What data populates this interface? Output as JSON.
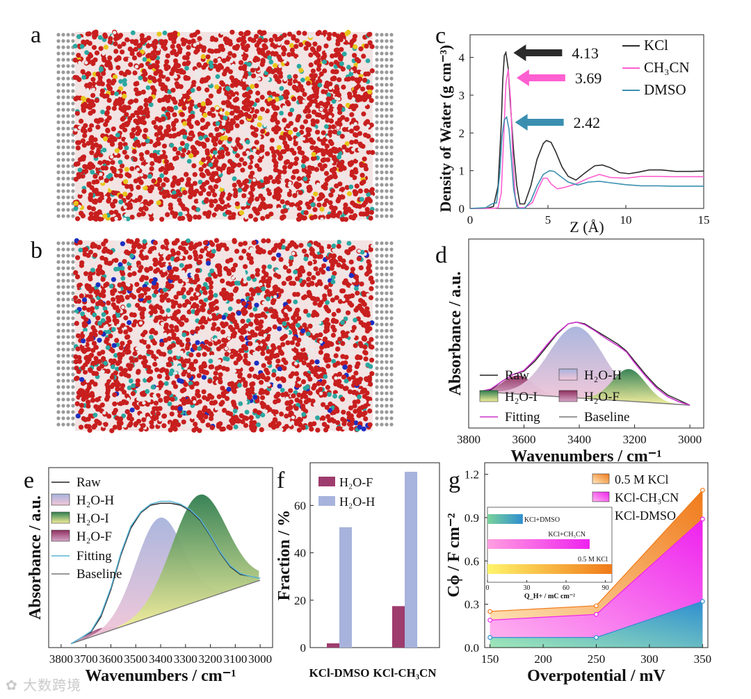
{
  "panels": {
    "a": {
      "label": "a"
    },
    "b": {
      "label": "b"
    }
  },
  "colors": {
    "kcl": "#2b2b2b",
    "ch3cn": "#ff5fd0",
    "dmso": "#3a8fb0",
    "h2o_f": "#9e3c6e",
    "h2o_h": "#a7b3dc",
    "h2o_i": "#3d8a55",
    "fitting": "#cc33cc",
    "baseline": "#777777",
    "sim_o": "#c81e1e",
    "sim_h": "#eaeaea",
    "sim_c": "#2aa7a0",
    "sim_k": "#e8c51a",
    "sim_n": "#1c2fc0",
    "sim_wall": "#9a9a9a",
    "g_kcl": "#f07a1a",
    "g_ch3cn": "#ee22ee",
    "g_dmso": "#2f8fd0"
  },
  "chart_data": [
    {
      "panel": "c",
      "type": "line",
      "xlabel": "Z (Å)",
      "ylabel": "Density of Water (g cm⁻³)",
      "xlim": [
        0,
        15
      ],
      "ylim": [
        0,
        4.6
      ],
      "xticks": [
        0,
        5,
        10,
        15
      ],
      "yticks": [
        0,
        1,
        2,
        3,
        4
      ],
      "series": [
        {
          "name": "KCl",
          "x": [
            0,
            1.0,
            1.5,
            1.8,
            2.0,
            2.1,
            2.2,
            2.3,
            2.45,
            2.6,
            2.8,
            3.0,
            3.2,
            3.5,
            3.9,
            4.3,
            4.7,
            4.9,
            5.2,
            5.5,
            5.9,
            6.3,
            6.8,
            7.4,
            8.0,
            8.5,
            9.0,
            9.6,
            10.2,
            10.8,
            11.5,
            12.3,
            13.2,
            14.2,
            15
          ],
          "y": [
            0,
            0,
            0.05,
            0.6,
            2.2,
            3.4,
            4.05,
            4.13,
            3.7,
            2.7,
            1.5,
            0.6,
            0.12,
            0.12,
            0.6,
            1.3,
            1.72,
            1.8,
            1.75,
            1.5,
            1.1,
            0.85,
            0.75,
            0.95,
            1.13,
            1.15,
            1.08,
            0.95,
            0.92,
            0.96,
            1.02,
            1.02,
            0.98,
            0.98,
            0.99
          ]
        },
        {
          "name": "CH₃CN",
          "x": [
            0,
            1.5,
            1.8,
            2.0,
            2.15,
            2.3,
            2.45,
            2.6,
            2.75,
            2.9,
            3.1,
            3.5,
            4.0,
            4.4,
            4.7,
            4.95,
            5.2,
            5.6,
            6.0,
            6.8,
            7.6,
            8.3,
            9.0,
            10.0,
            11.0,
            12.0,
            13.0,
            14.0,
            15
          ],
          "y": [
            0,
            0,
            0.02,
            0.4,
            1.8,
            3.3,
            3.69,
            2.9,
            1.3,
            0.3,
            0.02,
            0.02,
            0.15,
            0.55,
            0.8,
            0.8,
            0.65,
            0.52,
            0.55,
            0.65,
            0.8,
            0.9,
            0.82,
            0.8,
            0.85,
            0.85,
            0.84,
            0.84,
            0.84
          ]
        },
        {
          "name": "DMSO",
          "x": [
            0,
            1.0,
            1.4,
            1.7,
            1.9,
            2.05,
            2.2,
            2.35,
            2.5,
            2.65,
            2.8,
            3.0,
            3.2,
            3.5,
            3.9,
            4.3,
            4.7,
            5.1,
            5.4,
            5.8,
            6.3,
            6.9,
            7.6,
            8.3,
            9.0,
            10.0,
            11.0,
            12.0,
            13.0,
            14.0,
            15
          ],
          "y": [
            0,
            0.02,
            0.12,
            0.15,
            0.9,
            1.9,
            2.35,
            2.42,
            2.1,
            1.3,
            0.5,
            0.05,
            0.0,
            0.0,
            0.2,
            0.6,
            0.9,
            1.0,
            0.98,
            0.85,
            0.7,
            0.62,
            0.7,
            0.72,
            0.68,
            0.63,
            0.6,
            0.6,
            0.59,
            0.59,
            0.59
          ]
        }
      ],
      "annotations": [
        {
          "text": "4.13",
          "x": 2.25,
          "y": 4.13,
          "series": "KCl"
        },
        {
          "text": "3.69",
          "x": 2.45,
          "y": 3.69,
          "series": "CH₃CN"
        },
        {
          "text": "2.42",
          "x": 2.35,
          "y": 2.42,
          "series": "DMSO"
        }
      ],
      "legend": [
        "KCl",
        "CH₃CN",
        "DMSO"
      ]
    },
    {
      "panel": "d",
      "type": "area",
      "xlabel": "Wavenumbers / cm⁻¹",
      "ylabel": "Absorbance / a.u.",
      "xlim": [
        3800,
        2950
      ],
      "xticks": [
        3800,
        3600,
        3400,
        3200,
        3000
      ],
      "ylim": [
        0,
        1
      ],
      "baseline": {
        "x": [
          3760,
          3000
        ],
        "y": [
          0.1,
          0.02
        ]
      },
      "series": [
        {
          "name": "Raw",
          "x": [
            3760,
            3720,
            3680,
            3640,
            3600,
            3560,
            3520,
            3480,
            3440,
            3410,
            3380,
            3340,
            3300,
            3260,
            3230,
            3200,
            3160,
            3120,
            3080,
            3040,
            3000
          ],
          "y": [
            0.1,
            0.11,
            0.16,
            0.2,
            0.22,
            0.28,
            0.36,
            0.44,
            0.5,
            0.51,
            0.5,
            0.46,
            0.42,
            0.38,
            0.34,
            0.28,
            0.2,
            0.13,
            0.08,
            0.05,
            0.02
          ]
        },
        {
          "name": "Fitting",
          "x": [
            3760,
            3720,
            3680,
            3640,
            3600,
            3560,
            3520,
            3480,
            3440,
            3410,
            3380,
            3340,
            3300,
            3260,
            3230,
            3200,
            3160,
            3120,
            3080,
            3040,
            3000
          ],
          "y": [
            0.1,
            0.115,
            0.16,
            0.2,
            0.225,
            0.29,
            0.37,
            0.445,
            0.5,
            0.51,
            0.495,
            0.455,
            0.41,
            0.37,
            0.335,
            0.27,
            0.19,
            0.12,
            0.07,
            0.04,
            0.02
          ]
        },
        {
          "name": "H₂O-F",
          "center": 3620,
          "height": 0.11,
          "width": 55
        },
        {
          "name": "H₂O-H",
          "center": 3410,
          "height": 0.42,
          "width": 100
        },
        {
          "name": "H₂O-I",
          "center": 3220,
          "height": 0.19,
          "width": 60
        }
      ],
      "legend": [
        "Raw",
        "H₂O-I",
        "Fitting",
        "H₂O-H",
        "H₂O-F",
        "Baseline"
      ]
    },
    {
      "panel": "e",
      "type": "area",
      "xlabel": "Wavenumbers / cm⁻¹",
      "ylabel": "Absorbance / a.u.",
      "xlim": [
        3850,
        2950
      ],
      "xticks": [
        3800,
        3700,
        3600,
        3500,
        3400,
        3300,
        3200,
        3100,
        3000
      ],
      "ylim": [
        0,
        1
      ],
      "baseline": {
        "x": [
          3760,
          3000
        ],
        "y": [
          0.02,
          0.35
        ]
      },
      "series": [
        {
          "name": "Raw",
          "x": [
            3760,
            3720,
            3680,
            3640,
            3600,
            3560,
            3520,
            3480,
            3440,
            3400,
            3360,
            3320,
            3280,
            3240,
            3200,
            3160,
            3120,
            3080,
            3040,
            3000
          ],
          "y": [
            0.02,
            0.05,
            0.08,
            0.16,
            0.3,
            0.48,
            0.62,
            0.7,
            0.74,
            0.75,
            0.75,
            0.74,
            0.71,
            0.66,
            0.58,
            0.49,
            0.42,
            0.38,
            0.37,
            0.36
          ]
        },
        {
          "name": "Fitting",
          "x": [
            3760,
            3720,
            3680,
            3640,
            3600,
            3560,
            3520,
            3480,
            3440,
            3400,
            3360,
            3320,
            3280,
            3240,
            3200,
            3160,
            3120,
            3080,
            3040,
            3000
          ],
          "y": [
            0.02,
            0.05,
            0.085,
            0.17,
            0.31,
            0.49,
            0.63,
            0.705,
            0.745,
            0.76,
            0.76,
            0.745,
            0.715,
            0.665,
            0.585,
            0.495,
            0.425,
            0.385,
            0.37,
            0.36
          ]
        },
        {
          "name": "H₂O-F",
          "center": 3650,
          "height": 0.03,
          "width": 45
        },
        {
          "name": "H₂O-H",
          "center": 3405,
          "height": 0.5,
          "width": 95
        },
        {
          "name": "H₂O-I",
          "center": 3245,
          "height": 0.55,
          "width": 110
        }
      ],
      "legend": [
        "Raw",
        "H₂O-H",
        "H₂O-I",
        "H₂O-F",
        "Fitting",
        "Baseline"
      ]
    },
    {
      "panel": "f",
      "type": "bar",
      "xlabel": "",
      "ylabel": "Fraction / %",
      "categories": [
        "KCl-DMSO",
        "KCl-CH₃CN"
      ],
      "ylim": [
        0,
        78
      ],
      "yticks": [
        0,
        20,
        40,
        60
      ],
      "series": [
        {
          "name": "H₂O-F",
          "values": [
            1.8,
            17.5
          ]
        },
        {
          "name": "H₂O-H",
          "values": [
            50.8,
            74.2
          ]
        }
      ],
      "legend": [
        "H₂O-F",
        "H₂O-H"
      ]
    },
    {
      "panel": "g",
      "type": "area",
      "xlabel": "Overpotential / mV",
      "ylabel": "Cϕ / F cm⁻²",
      "x": [
        150,
        250,
        350
      ],
      "xlim": [
        145,
        355
      ],
      "xticks": [
        150,
        200,
        250,
        300,
        350
      ],
      "ylim": [
        0,
        1.28
      ],
      "yticks": [
        0.0,
        0.3,
        0.6,
        0.9,
        1.2
      ],
      "series": [
        {
          "name": "0.5 M KCl",
          "values": [
            0.25,
            0.29,
            1.09
          ]
        },
        {
          "name": "KCl-CH₃CN",
          "values": [
            0.19,
            0.23,
            0.89
          ]
        },
        {
          "name": "KCl-DMSO",
          "values": [
            0.07,
            0.07,
            0.32
          ]
        }
      ],
      "legend": [
        "0.5 M KCl",
        "KCl-CH₃CN",
        "KCl-DMSO"
      ],
      "inset": {
        "type": "bar-horizontal",
        "xlabel": "Q_H+ / mC cm⁻²",
        "xlim": [
          0,
          95
        ],
        "xticks": [
          0,
          30,
          60,
          90
        ],
        "categories": [
          "KCl+DMSO",
          "KCl+CH₃CN",
          "0.5 M KCl"
        ],
        "values": [
          27,
          78,
          95
        ]
      }
    }
  ]
}
